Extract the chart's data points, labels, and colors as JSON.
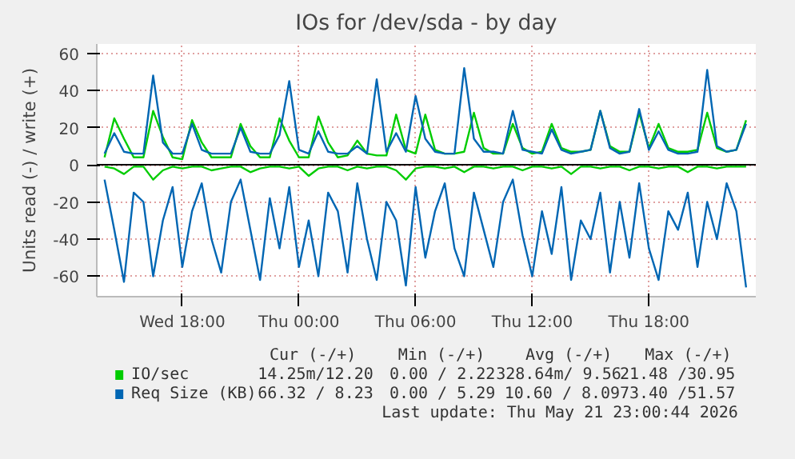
{
  "chart_data": {
    "type": "line",
    "title": "IOs for /dev/sda - by day",
    "ylabel": "Units read (-) / write (+)",
    "x": [
      "2026-05-20T14:00",
      "2026-05-20T14:30",
      "2026-05-20T15:00",
      "2026-05-20T15:30",
      "2026-05-20T16:00",
      "2026-05-20T16:30",
      "2026-05-20T17:00",
      "2026-05-20T17:30",
      "2026-05-20T18:00",
      "2026-05-20T18:30",
      "2026-05-20T19:00",
      "2026-05-20T19:30",
      "2026-05-20T20:00",
      "2026-05-20T20:30",
      "2026-05-20T21:00",
      "2026-05-20T21:30",
      "2026-05-20T22:00",
      "2026-05-20T22:30",
      "2026-05-20T23:00",
      "2026-05-20T23:30",
      "2026-05-21T00:00",
      "2026-05-21T00:30",
      "2026-05-21T01:00",
      "2026-05-21T01:30",
      "2026-05-21T02:00",
      "2026-05-21T02:30",
      "2026-05-21T03:00",
      "2026-05-21T03:30",
      "2026-05-21T04:00",
      "2026-05-21T04:30",
      "2026-05-21T05:00",
      "2026-05-21T05:30",
      "2026-05-21T06:00",
      "2026-05-21T06:30",
      "2026-05-21T07:00",
      "2026-05-21T07:30",
      "2026-05-21T08:00",
      "2026-05-21T08:30",
      "2026-05-21T09:00",
      "2026-05-21T09:30",
      "2026-05-21T10:00",
      "2026-05-21T10:30",
      "2026-05-21T11:00",
      "2026-05-21T11:30",
      "2026-05-21T12:00",
      "2026-05-21T12:30",
      "2026-05-21T13:00",
      "2026-05-21T13:30",
      "2026-05-21T14:00",
      "2026-05-21T14:30",
      "2026-05-21T15:00",
      "2026-05-21T15:30",
      "2026-05-21T16:00",
      "2026-05-21T16:30",
      "2026-05-21T17:00",
      "2026-05-21T17:30",
      "2026-05-21T18:00",
      "2026-05-21T18:30",
      "2026-05-21T19:00",
      "2026-05-21T19:30",
      "2026-05-21T20:00",
      "2026-05-21T20:30",
      "2026-05-21T21:00",
      "2026-05-21T21:30",
      "2026-05-21T22:00",
      "2026-05-21T22:30",
      "2026-05-21T23:00"
    ],
    "series": [
      {
        "color": "#00cc00",
        "values": [
          -1,
          -2,
          -5,
          -1,
          -1,
          -8,
          -3,
          -1,
          -2,
          -1,
          -1,
          -3,
          -2,
          -1,
          -1,
          -4,
          -2,
          -1,
          -1,
          -2,
          -1,
          -6,
          -2,
          -1,
          -1,
          -3,
          -1,
          -2,
          -1,
          -1,
          -3,
          -8,
          -2,
          -1,
          -1,
          -2,
          -1,
          -4,
          -1,
          -1,
          -2,
          -1,
          -1,
          -3,
          -1,
          -1,
          -2,
          -1,
          -5,
          -1,
          -1,
          -2,
          -1,
          -1,
          -3,
          -1,
          -1,
          -2,
          -1,
          -1,
          -4,
          -1,
          -1,
          -2,
          -1,
          -1,
          -1
        ]
      },
      {
        "name": "IO/sec",
        "color": "#00cc00",
        "values": [
          4,
          25,
          14,
          4,
          4,
          29,
          15,
          4,
          3,
          24,
          12,
          4,
          4,
          4,
          22,
          10,
          4,
          4,
          25,
          13,
          4,
          4,
          26,
          12,
          4,
          5,
          13,
          6,
          5,
          5,
          27,
          8,
          6,
          27,
          8,
          6,
          6,
          7,
          28,
          9,
          6,
          6,
          22,
          9,
          6,
          7,
          22,
          9,
          7,
          7,
          8,
          29,
          10,
          7,
          7,
          28,
          9,
          22,
          9,
          7,
          7,
          8,
          28,
          9,
          7,
          8,
          24
        ]
      },
      {
        "color": "#0066b3",
        "values": [
          -8,
          -35,
          -63,
          -15,
          -20,
          -60,
          -30,
          -12,
          -55,
          -25,
          -10,
          -40,
          -58,
          -20,
          -8,
          -35,
          -62,
          -18,
          -45,
          -12,
          -55,
          -30,
          -60,
          -15,
          -25,
          -58,
          -10,
          -40,
          -62,
          -20,
          -30,
          -65,
          -12,
          -50,
          -25,
          -10,
          -45,
          -60,
          -15,
          -35,
          -55,
          -20,
          -8,
          -38,
          -60,
          -25,
          -48,
          -12,
          -62,
          -30,
          -40,
          -15,
          -58,
          -20,
          -50,
          -10,
          -45,
          -62,
          -25,
          -35,
          -15,
          -55,
          -20,
          -40,
          -10,
          -25,
          -66
        ]
      },
      {
        "name": "Req Size (KB)",
        "color": "#0066b3",
        "values": [
          6,
          17,
          7,
          6,
          6,
          48,
          12,
          6,
          6,
          22,
          8,
          6,
          6,
          6,
          20,
          7,
          6,
          6,
          16,
          45,
          8,
          6,
          18,
          7,
          6,
          6,
          10,
          6,
          46,
          7,
          17,
          7,
          37,
          14,
          7,
          6,
          6,
          52,
          14,
          7,
          7,
          6,
          29,
          8,
          7,
          6,
          19,
          8,
          6,
          7,
          8,
          29,
          9,
          6,
          7,
          30,
          8,
          18,
          8,
          6,
          6,
          7,
          51,
          10,
          7,
          8,
          22
        ]
      }
    ],
    "xlim": [
      "2026-05-20T13:36",
      "2026-05-21T23:30"
    ],
    "xticks": [
      {
        "value": "2026-05-20T18:00",
        "label": "Wed 18:00"
      },
      {
        "value": "2026-05-21T00:00",
        "label": "Thu 00:00"
      },
      {
        "value": "2026-05-21T06:00",
        "label": "Thu 06:00"
      },
      {
        "value": "2026-05-21T12:00",
        "label": "Thu 12:00"
      },
      {
        "value": "2026-05-21T18:00",
        "label": "Thu 18:00"
      }
    ],
    "ylim": [
      -71,
      65
    ],
    "yticks": [
      -60,
      -40,
      -20,
      0,
      20,
      40,
      60
    ],
    "ref_lines": [
      {
        "axis": "y",
        "value": 0,
        "color": "#000000"
      }
    ],
    "grid": true,
    "legend": "bottom",
    "marker": "none",
    "line_style": "solid",
    "annotations": [
      "Cur (-/+)",
      "Min (-/+)",
      "Avg (-/+)",
      "Max (-/+)",
      "14.25m/12.20",
      "0.00 / 2.22",
      "328.64m/ 9.56",
      "21.48 /30.95",
      "66.32 / 8.23",
      "0.00 / 5.29",
      "10.60 / 8.09",
      "73.40 /51.57",
      "Last update: Thu May 21 23:00:44 2026"
    ]
  }
}
